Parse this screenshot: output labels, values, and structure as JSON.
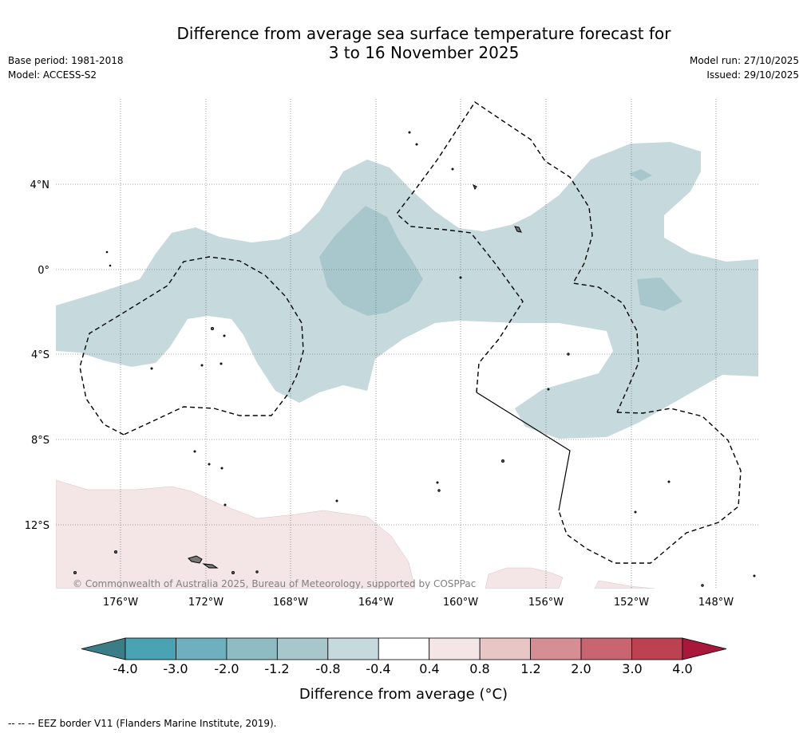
{
  "header": {
    "title_line1": "Difference from average sea surface temperature forecast for",
    "title_line2": "3 to 16 November 2025",
    "base_period": "Base period: 1981-2018",
    "model": "Model: ACCESS-S2",
    "model_run": "Model run: 27/10/2025",
    "issued": "Issued: 29/10/2025"
  },
  "map": {
    "lat_labels": [
      "4°N",
      "0°",
      "4°S",
      "8°S",
      "12°S"
    ],
    "lon_labels": [
      "176°W",
      "172°W",
      "168°W",
      "164°W",
      "160°W",
      "156°W",
      "152°W",
      "148°W"
    ],
    "copyright": "© Commonwealth of Australia 2025, Bureau of Meteorology, supported by COSPPac"
  },
  "colorbar": {
    "ticks": [
      "-4.0",
      "-3.0",
      "-2.0",
      "-1.2",
      "-0.8",
      "-0.4",
      "0.4",
      "0.8",
      "1.2",
      "2.0",
      "3.0",
      "4.0"
    ],
    "colors": [
      "#3a7d86",
      "#4aa3b3",
      "#6eb0bd",
      "#8fbcc3",
      "#a8c7cc",
      "#c6dadd",
      "#ffffff",
      "#f4e6e7",
      "#e8c6c5",
      "#d58e94",
      "#c86570",
      "#bd4251",
      "#a8183a"
    ],
    "label": "Difference from average (°C)"
  },
  "footer": {
    "legend": "-- -- -- EEZ border V11 (Flanders Marine Institute, 2019)."
  }
}
